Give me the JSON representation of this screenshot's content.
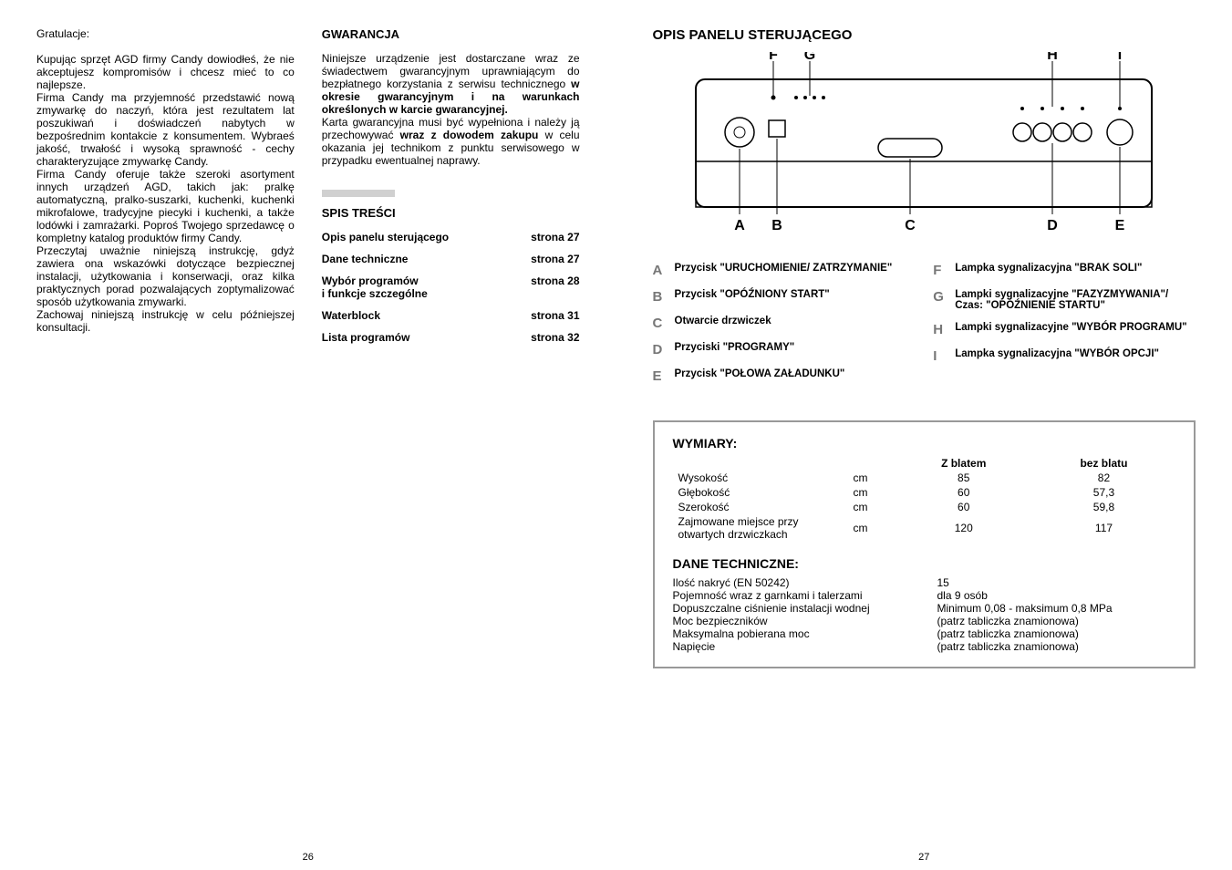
{
  "leftPage": {
    "pageNum": "26",
    "col1": {
      "greeting": "Gratulacje:",
      "p1": "Kupując sprzęt AGD firmy Candy dowiodłeś, że nie akceptujesz kompromisów i chcesz mieć to co najlepsze.",
      "p2": "Firma Candy ma przyjemność przedstawić nową zmywarkę do naczyń, która jest rezultatem lat poszukiwań i doświadczeń nabytych w bezpośrednim kontakcie z konsumentem. Wybraeś jakość, trwałość i wysoką sprawność - cechy charakteryzujące zmywarkę Candy.",
      "p3": "Firma Candy oferuje także szeroki asortyment innych urządzeń AGD, takich jak: pralkę automatyczną, pralko-suszarki, kuchenki, kuchenki mikrofalowe, tradycyjne piecyki i kuchenki, a także lodówki i zamrażarki. Poproś Twojego sprzedawcę o kompletny katalog produktów firmy Candy.",
      "p4": "Przeczytaj uważnie niniejszą instrukcję, gdyż zawiera ona wskazówki dotyczące bezpiecznej instalacji, użytkowania i konserwacji, oraz kilka praktycznych porad pozwalających zoptymalizować sposób użytkowania zmywarki.",
      "p5": "Zachowaj niniejszą instrukcję w celu późniejszej konsultacji."
    },
    "col2": {
      "warrantyTitle": "GWARANCJA",
      "warrantyP1a": "Niniejsze urządzenie jest dostarczane wraz ze świadectwem gwarancyjnym uprawniającym do bezpłatnego korzystania z serwisu technicznego ",
      "warrantyP1b": "w okresie gwarancyjnym i na warunkach określonych w karcie gwarancyjnej.",
      "warrantyP2a": "Karta gwarancyjna musi być wypełniona i należy ją przechowywać ",
      "warrantyP2b": "wraz z dowodem zakupu",
      "warrantyP2c": " w celu okazania jej technikom z  punktu serwisowego w przypadku ewentualnej naprawy.",
      "tocTitle": "SPIS TREŚCI",
      "toc": [
        {
          "l": "Opis panelu sterującego",
          "r": "strona 27"
        },
        {
          "l": "Dane techniczne",
          "r": "strona 27"
        },
        {
          "l": "Wybór programów\ni funkcje szczególne",
          "r": "strona 28"
        },
        {
          "l": "Waterblock",
          "r": "strona 31"
        },
        {
          "l": "Lista programów",
          "r": "strona 32"
        }
      ]
    }
  },
  "rightPage": {
    "pageNum": "27",
    "title": "OPIS PANELU STERUJĄCEGO",
    "diagLetters": {
      "A": "A",
      "B": "B",
      "C": "C",
      "D": "D",
      "E": "E",
      "F": "F",
      "G": "G",
      "H": "H",
      "I": "I"
    },
    "labelsLeft": [
      {
        "letter": "A",
        "text": "Przycisk \"URUCHOMIENIE/ ZATRZYMANIE\""
      },
      {
        "letter": "B",
        "text": "Przycisk \"OPÓŹNIONY START\""
      },
      {
        "letter": "C",
        "text": "Otwarcie drzwiczek"
      },
      {
        "letter": "D",
        "text": "Przyciski \"PROGRAMY\""
      },
      {
        "letter": "E",
        "text": "Przycisk \"POŁOWA ZAŁADUNKU\""
      }
    ],
    "labelsRight": [
      {
        "letter": "F",
        "text": "Lampka sygnalizacyjna \"BRAK SOLI\""
      },
      {
        "letter": "G",
        "text": "Lampki sygnalizacyjne \"FAZYZMYWANIA\"/ Czas: \"OPÓŹNIENIE STARTU\""
      },
      {
        "letter": "H",
        "text": "Lampki sygnalizacyjne \"WYBÓR PROGRAMU\""
      },
      {
        "letter": "I",
        "text": "Lampka sygnalizacyjna \"WYBÓR OPCJI\""
      }
    ],
    "dims": {
      "title": "WYMIARY:",
      "headZ": "Z blatem",
      "headBez": "bez blatu",
      "rows": [
        {
          "k": "Wysokość",
          "u": "cm",
          "z": "85",
          "b": "82"
        },
        {
          "k": "Głębokość",
          "u": "cm",
          "z": "60",
          "b": "57,3"
        },
        {
          "k": "Szerokość",
          "u": "cm",
          "z": "60",
          "b": "59,8"
        },
        {
          "k": "Zajmowane miejsce przy otwartych drzwiczkach",
          "u": "cm",
          "z": "120",
          "b": "117"
        }
      ]
    },
    "tech": {
      "title": "DANE TECHNICZNE:",
      "rows": [
        {
          "k": "Ilość nakryć (EN 50242)",
          "v": "15"
        },
        {
          "k": "Pojemność wraz z garnkami i talerzami",
          "v": "dla 9 osób"
        },
        {
          "k": "Dopuszczalne ciśnienie instalacji wodnej",
          "v": "Minimum 0,08 - maksimum 0,8 MPa"
        },
        {
          "k": "Moc bezpieczników",
          "v": "(patrz tabliczka znamionowa)"
        },
        {
          "k": "Maksymalna pobierana moc",
          "v": "(patrz tabliczka znamionowa)"
        },
        {
          "k": "Napięcie",
          "v": "(patrz tabliczka znamionowa)"
        }
      ]
    }
  }
}
